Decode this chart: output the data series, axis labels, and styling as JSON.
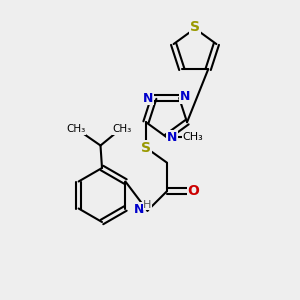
{
  "bg_color": "#eeeeee",
  "bond_color": "#000000",
  "bond_lw": 1.5,
  "atom_labels": {
    "N1": {
      "text": "N",
      "color": "#0000cc",
      "fontsize": 9,
      "bold": true
    },
    "N2": {
      "text": "N",
      "color": "#0000cc",
      "fontsize": 9,
      "bold": true
    },
    "N3": {
      "text": "N",
      "color": "#0000cc",
      "fontsize": 9,
      "bold": true
    },
    "S1": {
      "text": "S",
      "color": "#999900",
      "fontsize": 9,
      "bold": true
    },
    "S2": {
      "text": "S",
      "color": "#999900",
      "fontsize": 9,
      "bold": true
    },
    "O": {
      "text": "O",
      "color": "#cc0000",
      "fontsize": 9,
      "bold": true
    },
    "NH": {
      "text": "H",
      "color": "#555555",
      "fontsize": 8,
      "bold": false
    },
    "Namine": {
      "text": "N",
      "color": "#0000cc",
      "fontsize": 9,
      "bold": true
    },
    "Me": {
      "text": "CH₃",
      "color": "#000000",
      "fontsize": 8,
      "bold": false
    }
  }
}
